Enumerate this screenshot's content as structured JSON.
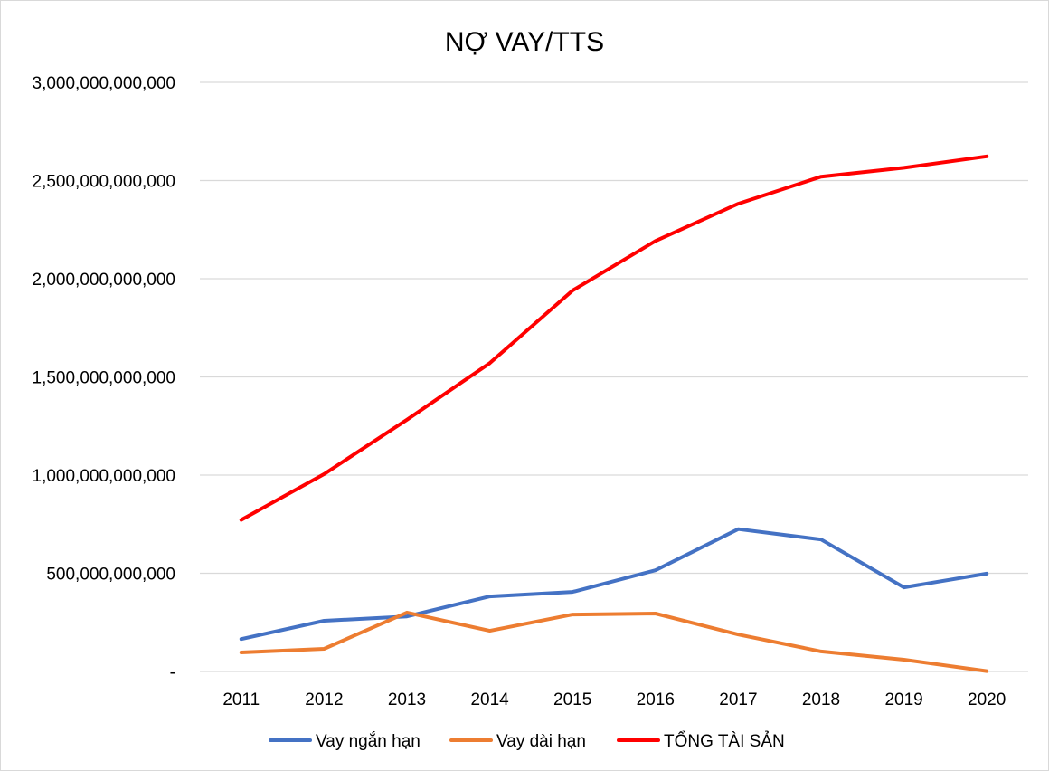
{
  "chart_data": {
    "type": "line",
    "title": "NỢ VAY/TTS",
    "xlabel": "",
    "ylabel": "",
    "categories": [
      "2011",
      "2012",
      "2013",
      "2014",
      "2015",
      "2016",
      "2017",
      "2018",
      "2019",
      "2020"
    ],
    "ylim": [
      0,
      3000000000000
    ],
    "y_ticks": [
      0,
      500000000000,
      1000000000000,
      1500000000000,
      2000000000000,
      2500000000000,
      3000000000000
    ],
    "y_tick_labels": [
      "-",
      "500,000,000,000",
      "1,000,000,000,000",
      "1,500,000,000,000",
      "2,000,000,000,000",
      "2,500,000,000,000",
      "3,000,000,000,000"
    ],
    "grid": true,
    "legend_position": "bottom",
    "series": [
      {
        "name": "Vay ngắn hạn",
        "color": "#4472C4",
        "values": [
          165000000000,
          258000000000,
          280000000000,
          382000000000,
          405000000000,
          515000000000,
          725000000000,
          672000000000,
          428000000000,
          498000000000
        ]
      },
      {
        "name": "Vay dài hạn",
        "color": "#ED7D31",
        "values": [
          97000000000,
          115000000000,
          300000000000,
          207000000000,
          290000000000,
          295000000000,
          188000000000,
          102000000000,
          60000000000,
          2000000000
        ]
      },
      {
        "name": "TỔNG TÀI SẢN",
        "color": "#FF0000",
        "values": [
          772000000000,
          1005000000000,
          1282000000000,
          1570000000000,
          1940000000000,
          2192000000000,
          2382000000000,
          2520000000000,
          2565000000000,
          2623000000000
        ]
      }
    ]
  }
}
